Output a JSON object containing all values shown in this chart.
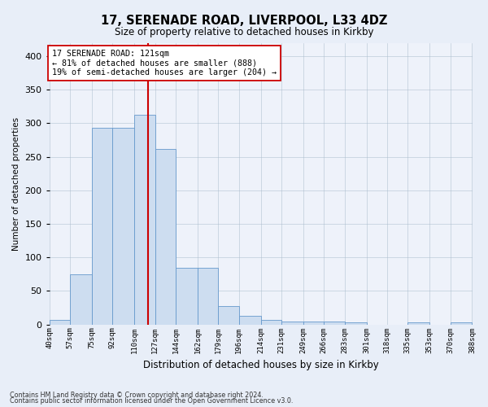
{
  "title": "17, SERENADE ROAD, LIVERPOOL, L33 4DZ",
  "subtitle": "Size of property relative to detached houses in Kirkby",
  "xlabel": "Distribution of detached houses by size in Kirkby",
  "ylabel": "Number of detached properties",
  "bins": [
    "40sqm",
    "57sqm",
    "75sqm",
    "92sqm",
    "110sqm",
    "127sqm",
    "144sqm",
    "162sqm",
    "179sqm",
    "196sqm",
    "214sqm",
    "231sqm",
    "249sqm",
    "266sqm",
    "283sqm",
    "301sqm",
    "318sqm",
    "335sqm",
    "353sqm",
    "370sqm",
    "388sqm"
  ],
  "bin_edges": [
    40,
    57,
    75,
    92,
    110,
    127,
    144,
    162,
    179,
    196,
    214,
    231,
    249,
    266,
    283,
    301,
    318,
    335,
    353,
    370,
    388
  ],
  "bar_heights": [
    7,
    75,
    293,
    293,
    313,
    262,
    85,
    85,
    27,
    13,
    7,
    4,
    4,
    4,
    3,
    0,
    0,
    3,
    0,
    3
  ],
  "bar_color": "#cdddf0",
  "bar_edge_color": "#6699cc",
  "property_size": 121,
  "property_line_color": "#cc0000",
  "annotation_line1": "17 SERENADE ROAD: 121sqm",
  "annotation_line2": "← 81% of detached houses are smaller (888)",
  "annotation_line3": "19% of semi-detached houses are larger (204) →",
  "annotation_box_color": "#ffffff",
  "annotation_box_edge": "#cc0000",
  "ylim": [
    0,
    420
  ],
  "yticks": [
    0,
    50,
    100,
    150,
    200,
    250,
    300,
    350,
    400
  ],
  "footer1": "Contains HM Land Registry data © Crown copyright and database right 2024.",
  "footer2": "Contains public sector information licensed under the Open Government Licence v3.0.",
  "bg_color": "#e8eef8",
  "plot_bg_color": "#eef2fa"
}
